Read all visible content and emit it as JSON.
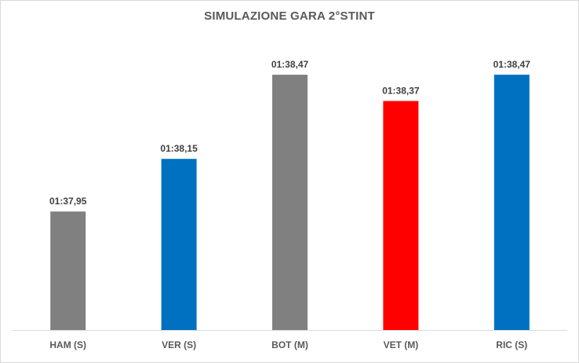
{
  "chart_data": {
    "type": "bar",
    "title": "SIMULAZIONE GARA 2°STINT",
    "categories": [
      "HAM (S)",
      "VER (S)",
      "BOT (M)",
      "VET (M)",
      "RIC (S)"
    ],
    "values": [
      97.95,
      98.15,
      98.47,
      98.37,
      98.47
    ],
    "value_labels": [
      "01:37,95",
      "01:38,15",
      "01:38,47",
      "01:38,37",
      "01:38,47"
    ],
    "bar_colors": [
      "#808080",
      "#0070c0",
      "#808080",
      "#ff0000",
      "#0070c0"
    ],
    "xlabel": "",
    "ylabel": "",
    "ylim": [
      97.5,
      98.5
    ],
    "grid": false,
    "legend": "none"
  }
}
